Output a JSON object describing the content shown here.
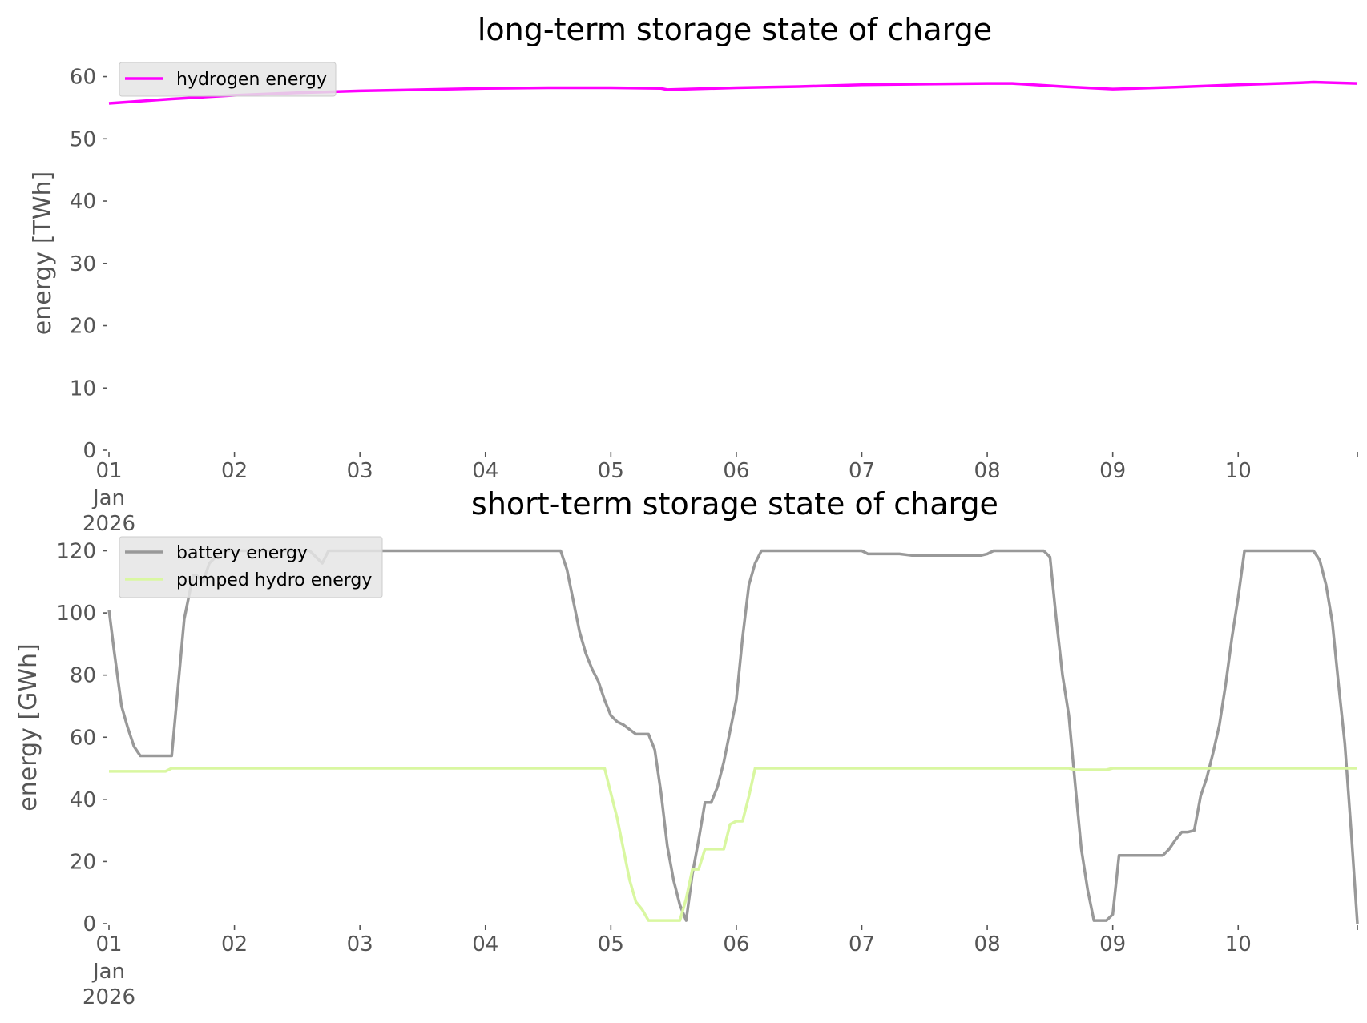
{
  "chart_data": [
    {
      "type": "line",
      "title": "long-term storage state of charge",
      "ylabel": "energy [TWh]",
      "xlabel": "",
      "ylim": [
        0,
        62
      ],
      "yticks": [
        0,
        10,
        20,
        30,
        40,
        50,
        60
      ],
      "xlim": [
        0,
        9.95
      ],
      "xticks": [
        {
          "x": 0,
          "label": "01",
          "sub": [
            "Jan",
            "2026"
          ]
        },
        {
          "x": 1,
          "label": "02"
        },
        {
          "x": 2,
          "label": "03"
        },
        {
          "x": 3,
          "label": "04"
        },
        {
          "x": 4,
          "label": "05"
        },
        {
          "x": 5,
          "label": "06"
        },
        {
          "x": 6,
          "label": "07"
        },
        {
          "x": 7,
          "label": "08"
        },
        {
          "x": 8,
          "label": "09"
        },
        {
          "x": 9,
          "label": "10"
        }
      ],
      "grid": false,
      "legend_position": "top-left",
      "series": [
        {
          "name": "hydrogen energy",
          "color": "#ff00ff",
          "points": [
            [
              0,
              55.7
            ],
            [
              0.5,
              56.4
            ],
            [
              1,
              57
            ],
            [
              1.5,
              57.4
            ],
            [
              2,
              57.7
            ],
            [
              2.5,
              57.9
            ],
            [
              3,
              58.1
            ],
            [
              3.5,
              58.2
            ],
            [
              4,
              58.2
            ],
            [
              4.4,
              58.1
            ],
            [
              4.45,
              57.9
            ],
            [
              5,
              58.2
            ],
            [
              5.5,
              58.4
            ],
            [
              6,
              58.7
            ],
            [
              6.5,
              58.8
            ],
            [
              7,
              58.9
            ],
            [
              7.2,
              58.9
            ],
            [
              7.6,
              58.4
            ],
            [
              8,
              58
            ],
            [
              8.5,
              58.3
            ],
            [
              9,
              58.7
            ],
            [
              9.5,
              59
            ],
            [
              9.6,
              59.1
            ],
            [
              9.95,
              58.9
            ]
          ]
        }
      ]
    },
    {
      "type": "line",
      "title": "short-term storage state of charge",
      "ylabel": "energy [GWh]",
      "xlabel": "",
      "ylim": [
        0,
        124
      ],
      "yticks": [
        0,
        20,
        40,
        60,
        80,
        100,
        120
      ],
      "xlim": [
        0,
        9.95
      ],
      "xticks": [
        {
          "x": 0,
          "label": "01",
          "sub": [
            "Jan",
            "2026"
          ]
        },
        {
          "x": 1,
          "label": "02"
        },
        {
          "x": 2,
          "label": "03"
        },
        {
          "x": 3,
          "label": "04"
        },
        {
          "x": 4,
          "label": "05"
        },
        {
          "x": 5,
          "label": "06"
        },
        {
          "x": 6,
          "label": "07"
        },
        {
          "x": 7,
          "label": "08"
        },
        {
          "x": 8,
          "label": "09"
        },
        {
          "x": 9,
          "label": "10"
        }
      ],
      "grid": false,
      "legend_position": "top-left",
      "series": [
        {
          "name": "battery energy",
          "color": "#999999",
          "points": [
            [
              0,
              101
            ],
            [
              0.04,
              88
            ],
            [
              0.1,
              70
            ],
            [
              0.15,
              63
            ],
            [
              0.2,
              57
            ],
            [
              0.25,
              54
            ],
            [
              0.3,
              54
            ],
            [
              0.35,
              54
            ],
            [
              0.45,
              54
            ],
            [
              0.5,
              54
            ],
            [
              0.55,
              76
            ],
            [
              0.6,
              98
            ],
            [
              0.67,
              112
            ],
            [
              0.7,
              112
            ],
            [
              0.75,
              110
            ],
            [
              0.8,
              116
            ],
            [
              0.9,
              120
            ],
            [
              1,
              120
            ],
            [
              1.6,
              120
            ],
            [
              1.7,
              116
            ],
            [
              1.75,
              120
            ],
            [
              2,
              120
            ],
            [
              3,
              120
            ],
            [
              3.5,
              120
            ],
            [
              3.6,
              120
            ],
            [
              3.65,
              114
            ],
            [
              3.7,
              104
            ],
            [
              3.75,
              94
            ],
            [
              3.8,
              87
            ],
            [
              3.85,
              82
            ],
            [
              3.9,
              78
            ],
            [
              3.95,
              72
            ],
            [
              4,
              67
            ],
            [
              4.05,
              65
            ],
            [
              4.1,
              64
            ],
            [
              4.15,
              62.5
            ],
            [
              4.2,
              61
            ],
            [
              4.25,
              61
            ],
            [
              4.3,
              61
            ],
            [
              4.35,
              56
            ],
            [
              4.4,
              42
            ],
            [
              4.45,
              25
            ],
            [
              4.5,
              14
            ],
            [
              4.55,
              6
            ],
            [
              4.6,
              1
            ],
            [
              4.65,
              16
            ],
            [
              4.7,
              27
            ],
            [
              4.75,
              39
            ],
            [
              4.8,
              39
            ],
            [
              4.85,
              44
            ],
            [
              4.9,
              52
            ],
            [
              4.95,
              62
            ],
            [
              5,
              72
            ],
            [
              5.05,
              92
            ],
            [
              5.1,
              109
            ],
            [
              5.15,
              116
            ],
            [
              5.2,
              120
            ],
            [
              5.3,
              120
            ],
            [
              6,
              120
            ],
            [
              6.05,
              119
            ],
            [
              6.3,
              119
            ],
            [
              6.4,
              118.5
            ],
            [
              6.95,
              118.5
            ],
            [
              7,
              119
            ],
            [
              7.05,
              120
            ],
            [
              7.2,
              120
            ],
            [
              7.45,
              120
            ],
            [
              7.5,
              118
            ],
            [
              7.55,
              98
            ],
            [
              7.6,
              80
            ],
            [
              7.65,
              67
            ],
            [
              7.7,
              45
            ],
            [
              7.75,
              24
            ],
            [
              7.8,
              11
            ],
            [
              7.85,
              1
            ],
            [
              7.95,
              1
            ],
            [
              8,
              3
            ],
            [
              8.05,
              22
            ],
            [
              8.1,
              22
            ],
            [
              8.4,
              22
            ],
            [
              8.45,
              24
            ],
            [
              8.5,
              27
            ],
            [
              8.55,
              29.5
            ],
            [
              8.6,
              29.5
            ],
            [
              8.65,
              30
            ],
            [
              8.7,
              41
            ],
            [
              8.75,
              47
            ],
            [
              8.8,
              55
            ],
            [
              8.85,
              64
            ],
            [
              8.9,
              77
            ],
            [
              8.95,
              92
            ],
            [
              9,
              105
            ],
            [
              9.05,
              120
            ],
            [
              9.1,
              120
            ],
            [
              9.6,
              120
            ],
            [
              9.65,
              117
            ],
            [
              9.7,
              109
            ],
            [
              9.75,
              97
            ],
            [
              9.8,
              77
            ],
            [
              9.85,
              58
            ],
            [
              9.9,
              30
            ],
            [
              9.95,
              0
            ]
          ]
        },
        {
          "name": "pumped hydro energy",
          "color": "#d9f7a1",
          "points": [
            [
              0,
              49
            ],
            [
              0.45,
              49
            ],
            [
              0.5,
              50
            ],
            [
              1,
              50
            ],
            [
              2,
              50
            ],
            [
              3,
              50
            ],
            [
              3.95,
              50
            ],
            [
              4,
              42
            ],
            [
              4.05,
              34
            ],
            [
              4.1,
              24
            ],
            [
              4.15,
              14
            ],
            [
              4.2,
              7
            ],
            [
              4.25,
              4.5
            ],
            [
              4.3,
              1
            ],
            [
              4.55,
              1
            ],
            [
              4.6,
              8
            ],
            [
              4.65,
              17.5
            ],
            [
              4.7,
              17.5
            ],
            [
              4.75,
              24
            ],
            [
              4.8,
              24
            ],
            [
              4.85,
              24
            ],
            [
              4.9,
              24
            ],
            [
              4.95,
              32
            ],
            [
              5,
              33
            ],
            [
              5.05,
              33
            ],
            [
              5.1,
              41
            ],
            [
              5.15,
              50
            ],
            [
              5.2,
              50
            ],
            [
              6,
              50
            ],
            [
              7,
              50
            ],
            [
              7.5,
              50
            ],
            [
              7.65,
              50
            ],
            [
              7.7,
              49.5
            ],
            [
              7.95,
              49.5
            ],
            [
              8,
              50
            ],
            [
              8.5,
              50
            ],
            [
              9,
              50
            ],
            [
              9.95,
              50
            ]
          ]
        }
      ]
    }
  ]
}
